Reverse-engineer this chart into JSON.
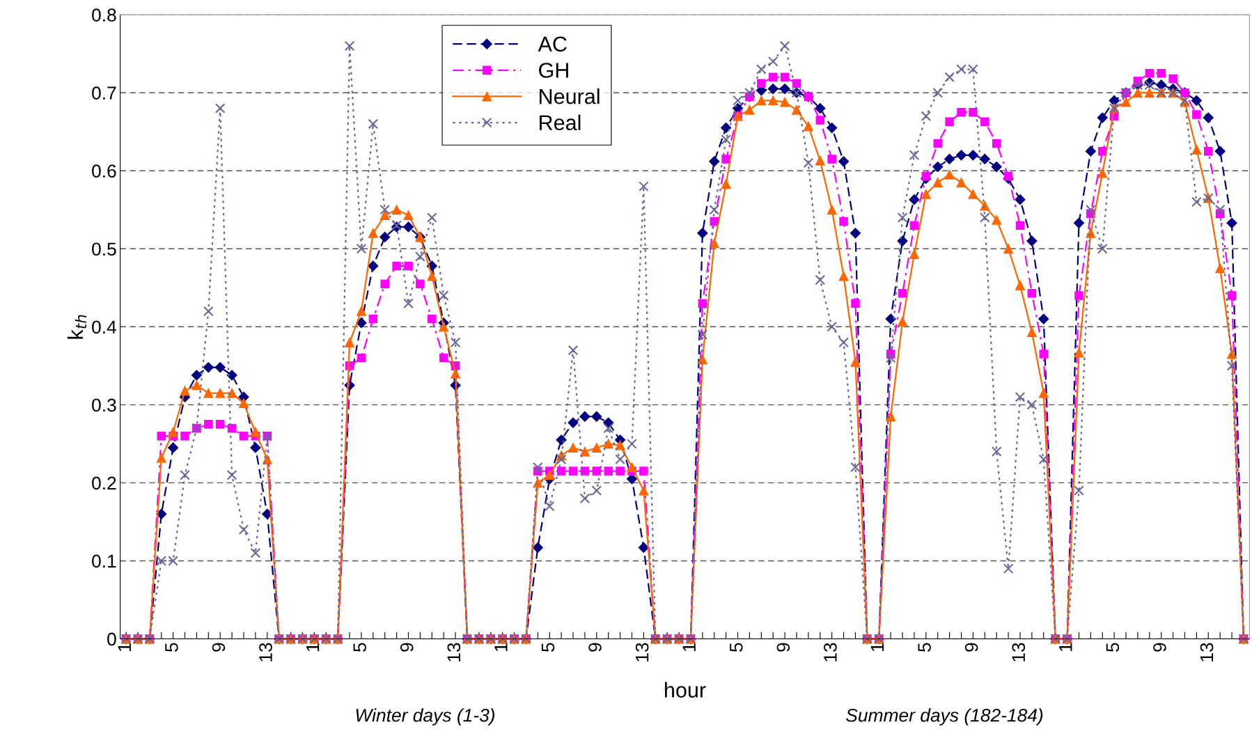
{
  "chart_data": {
    "type": "line",
    "categories": [
      "1",
      null,
      null,
      null,
      "5",
      null,
      null,
      null,
      "9",
      null,
      null,
      null,
      "13",
      null,
      null,
      null,
      "1",
      null,
      null,
      null,
      "5",
      null,
      null,
      null,
      "9",
      null,
      null,
      null,
      "13",
      null,
      null,
      null,
      "1",
      null,
      null,
      null,
      "5",
      null,
      null,
      null,
      "9",
      null,
      null,
      null,
      "13",
      null,
      null,
      null,
      "1",
      null,
      null,
      null,
      "5",
      null,
      null,
      null,
      "9",
      null,
      null,
      null,
      "13",
      null,
      null,
      null,
      "1",
      null,
      null,
      null,
      "5",
      null,
      null,
      null,
      "9",
      null,
      null,
      null,
      "13",
      null,
      null,
      null,
      "1",
      null,
      null,
      null,
      "5",
      null,
      null,
      null,
      "9",
      null,
      null,
      null,
      "13",
      null,
      null,
      null
    ],
    "series": [
      {
        "name": "AC",
        "color": "#000080",
        "marker": "diamond",
        "line_style": "dashed",
        "values": [
          0,
          0,
          0,
          0.16,
          0.245,
          0.31,
          0.338,
          0.348,
          0.348,
          0.338,
          0.31,
          0.245,
          0.16,
          0,
          0,
          0,
          0,
          0,
          0,
          0.325,
          0.405,
          0.478,
          0.515,
          0.528,
          0.528,
          0.515,
          0.478,
          0.405,
          0.325,
          0,
          0,
          0,
          0,
          0,
          0,
          0.117,
          0.205,
          0.255,
          0.277,
          0.285,
          0.285,
          0.277,
          0.255,
          0.205,
          0.117,
          0,
          0,
          0,
          0,
          0.52,
          0.612,
          0.655,
          0.68,
          0.695,
          0.703,
          0.705,
          0.705,
          0.7,
          0.695,
          0.68,
          0.655,
          0.612,
          0.52,
          0,
          0,
          0.41,
          0.51,
          0.563,
          0.59,
          0.605,
          0.615,
          0.62,
          0.62,
          0.615,
          0.605,
          0.59,
          0.563,
          0.51,
          0.41,
          0,
          0,
          0.533,
          0.625,
          0.668,
          0.69,
          0.7,
          0.71,
          0.713,
          0.71,
          0.705,
          0.7,
          0.69,
          0.668,
          0.625,
          0.533,
          0
        ]
      },
      {
        "name": "GH",
        "color": "#ff00ff",
        "marker": "square",
        "line_style": "dashdot",
        "values": [
          0,
          0,
          0,
          0.26,
          0.26,
          0.26,
          0.27,
          0.275,
          0.275,
          0.27,
          0.26,
          0.26,
          0.26,
          0,
          0,
          0,
          0,
          0,
          0,
          0.35,
          0.36,
          0.41,
          0.455,
          0.478,
          0.478,
          0.455,
          0.41,
          0.36,
          0.35,
          0,
          0,
          0,
          0,
          0,
          0,
          0.215,
          0.215,
          0.215,
          0.215,
          0.215,
          0.215,
          0.215,
          0.215,
          0.215,
          0.215,
          0,
          0,
          0,
          0,
          0.43,
          0.535,
          0.615,
          0.67,
          0.695,
          0.712,
          0.72,
          0.72,
          0.712,
          0.695,
          0.665,
          0.615,
          0.535,
          0.43,
          0,
          0,
          0.365,
          0.443,
          0.53,
          0.593,
          0.635,
          0.663,
          0.675,
          0.675,
          0.663,
          0.635,
          0.593,
          0.53,
          0.443,
          0.365,
          0,
          0,
          0.44,
          0.545,
          0.625,
          0.67,
          0.7,
          0.715,
          0.725,
          0.725,
          0.718,
          0.7,
          0.672,
          0.625,
          0.545,
          0.44,
          0
        ]
      },
      {
        "name": "Neural",
        "color": "#ff6600",
        "marker": "triangle",
        "line_style": "solid",
        "values": [
          0,
          0,
          0,
          0.232,
          0.265,
          0.318,
          0.325,
          0.315,
          0.315,
          0.315,
          0.302,
          0.265,
          0.23,
          0,
          0,
          0,
          0,
          0,
          0,
          0.38,
          0.42,
          0.52,
          0.543,
          0.55,
          0.543,
          0.515,
          0.465,
          0.4,
          0.34,
          0,
          0,
          0,
          0,
          0,
          0,
          0.2,
          0.21,
          0.235,
          0.245,
          0.24,
          0.245,
          0.25,
          0.248,
          0.22,
          0.19,
          0,
          0,
          0,
          0,
          0.358,
          0.507,
          0.583,
          0.67,
          0.678,
          0.69,
          0.69,
          0.688,
          0.678,
          0.657,
          0.613,
          0.55,
          0.465,
          0.355,
          0,
          0,
          0.285,
          0.407,
          0.493,
          0.57,
          0.585,
          0.595,
          0.585,
          0.57,
          0.555,
          0.537,
          0.5,
          0.453,
          0.393,
          0.315,
          0,
          0,
          0.367,
          0.52,
          0.597,
          0.68,
          0.688,
          0.7,
          0.7,
          0.7,
          0.7,
          0.688,
          0.627,
          0.565,
          0.475,
          0.365,
          0
        ]
      },
      {
        "name": "Real",
        "color": "#666699",
        "marker": "cross",
        "line_style": "dotted",
        "values": [
          0,
          0,
          0,
          0.1,
          0.1,
          0.21,
          0.27,
          0.42,
          0.68,
          0.21,
          0.14,
          0.11,
          0.26,
          0,
          0,
          0,
          0,
          0,
          0,
          0.76,
          0.5,
          0.66,
          0.55,
          0.53,
          0.43,
          0.49,
          0.54,
          0.44,
          0.38,
          0,
          0,
          0,
          0,
          0,
          0,
          0.22,
          0.17,
          0.23,
          0.37,
          0.18,
          0.19,
          0.27,
          0.23,
          0.25,
          0.58,
          0,
          0,
          0,
          0,
          0.39,
          0.55,
          0.64,
          0.69,
          0.7,
          0.73,
          0.74,
          0.76,
          0.7,
          0.61,
          0.46,
          0.4,
          0.38,
          0.22,
          0,
          0,
          0.36,
          0.54,
          0.62,
          0.67,
          0.7,
          0.72,
          0.73,
          0.73,
          0.54,
          0.24,
          0.09,
          0.31,
          0.3,
          0.23,
          0,
          0,
          0.19,
          0.55,
          0.5,
          0.68,
          0.7,
          0.71,
          0.71,
          0.7,
          0.7,
          0.69,
          0.56,
          0.565,
          0.55,
          0.35,
          0
        ]
      }
    ],
    "xlabel": "hour",
    "ylabel": "k$_{th}$",
    "annotations": [
      "Winter days (1-3)",
      "Summer days (182-184)"
    ],
    "ylim": [
      0,
      0.8
    ],
    "yticks": [
      0,
      0.1,
      0.2,
      0.3,
      0.4,
      0.5,
      0.6,
      0.7,
      0.8
    ],
    "grid": "y",
    "legend": "top"
  }
}
